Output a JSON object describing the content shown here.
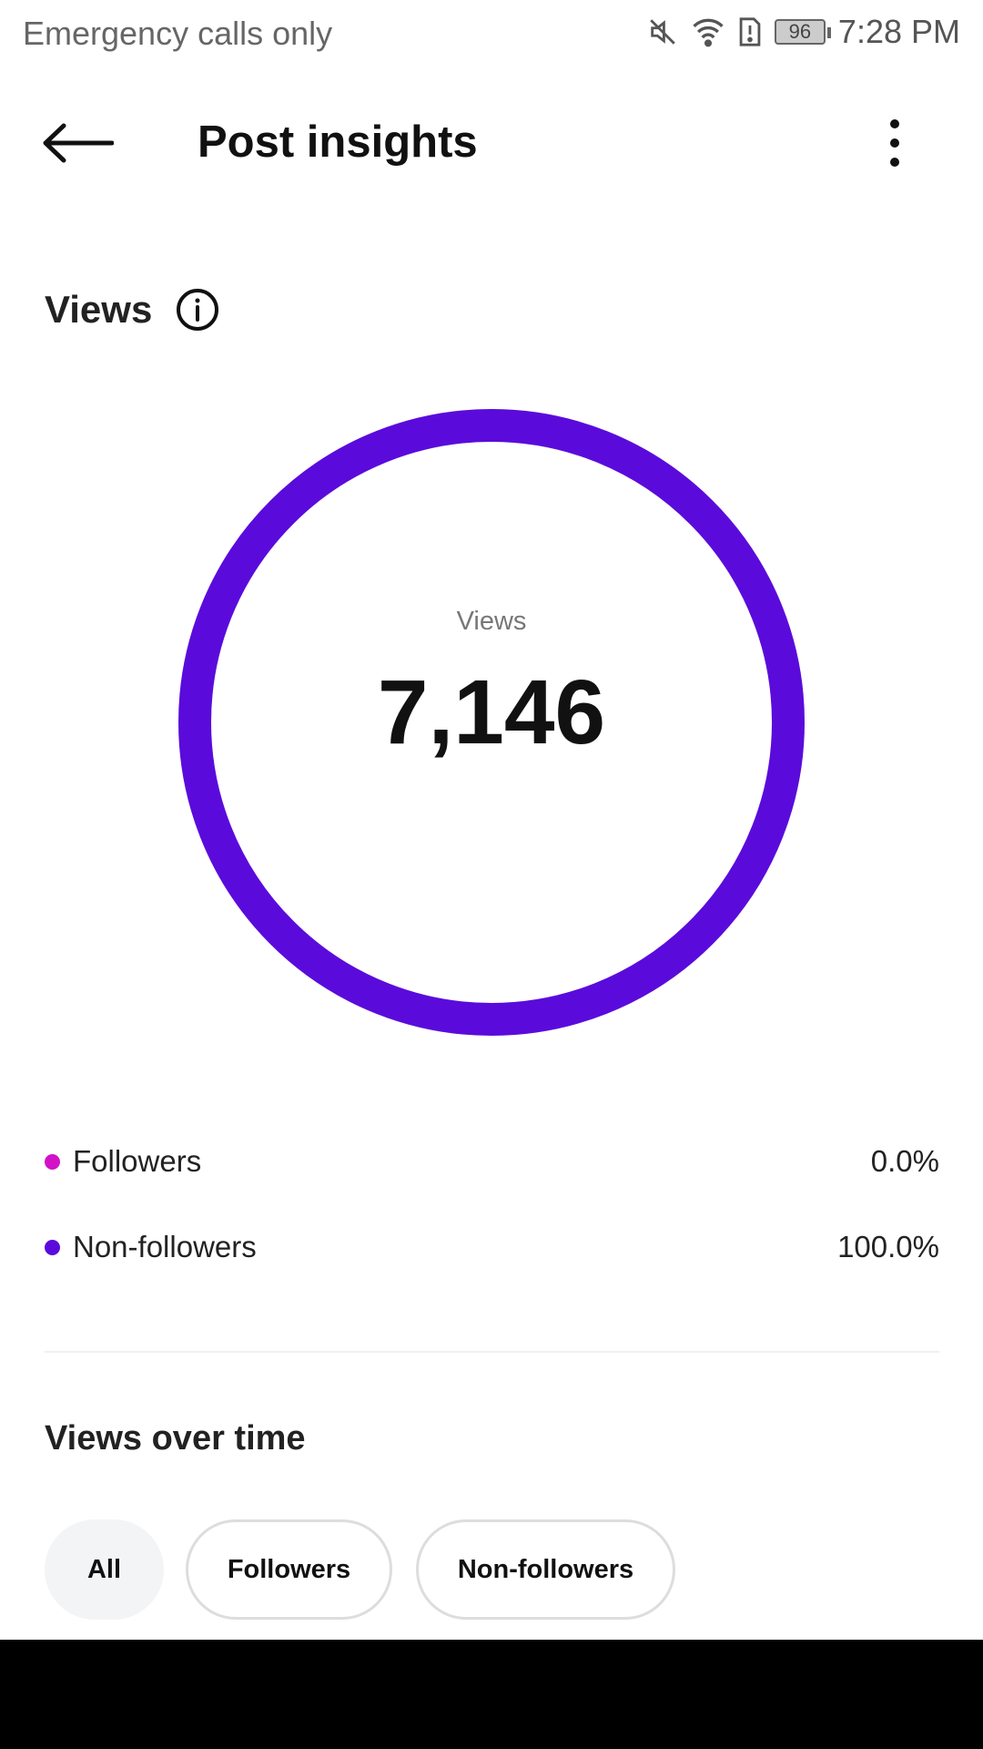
{
  "status_bar": {
    "carrier": "Emergency calls only",
    "battery": "96",
    "time": "7:28 PM",
    "icons": [
      "mute-icon",
      "wifi-icon",
      "sim-alert-icon",
      "battery-icon"
    ]
  },
  "header": {
    "title": "Post insights",
    "back_icon": "arrow-left-icon",
    "menu_icon": "more-vertical-icon"
  },
  "views": {
    "heading": "Views",
    "info_icon": "info-icon",
    "ring_label": "Views",
    "total": "7,146",
    "legend": [
      {
        "label": "Followers",
        "value": "0.0%",
        "fraction": 0.0,
        "color": "#d112c8"
      },
      {
        "label": "Non-followers",
        "value": "100.0%",
        "fraction": 1.0,
        "color": "#5a0bdb"
      }
    ]
  },
  "views_over_time": {
    "heading": "Views over time",
    "chips": [
      {
        "label": "All",
        "selected": true
      },
      {
        "label": "Followers",
        "selected": false
      },
      {
        "label": "Non-followers",
        "selected": false
      }
    ]
  }
}
